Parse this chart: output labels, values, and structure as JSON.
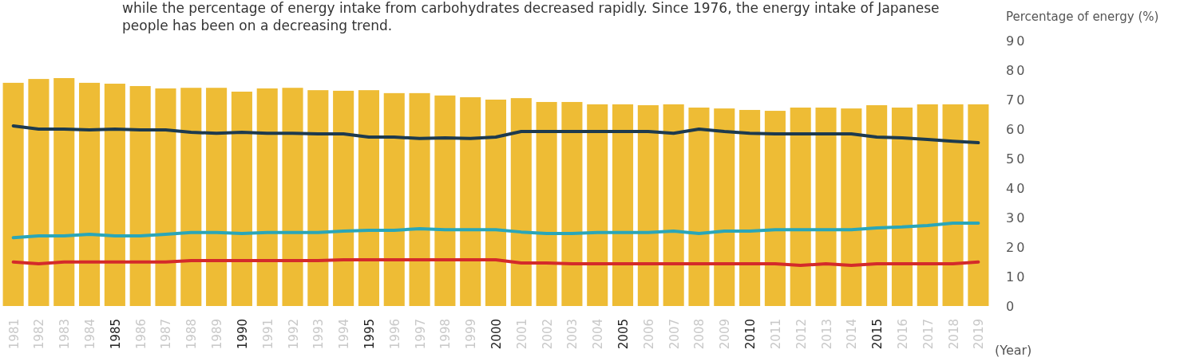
{
  "chart_data": {
    "type": "bar",
    "title": "while the percentage of energy intake from carbohydrates decreased rapidly. Since 1976, the energy intake of Japanese people has been on a decreasing trend.",
    "ylabel": "Percentage of energy (%)",
    "xlabel": "(Year)",
    "categories": [
      "1981",
      "1982",
      "1983",
      "1984",
      "1985",
      "1986",
      "1987",
      "1988",
      "1989",
      "1990",
      "1991",
      "1992",
      "1993",
      "1994",
      "1995",
      "1996",
      "1997",
      "1998",
      "1999",
      "2000",
      "2001",
      "2002",
      "2003",
      "2004",
      "2005",
      "2006",
      "2007",
      "2008",
      "2009",
      "2010",
      "2011",
      "2012",
      "2013",
      "2014",
      "2015",
      "2016",
      "2017",
      "2018",
      "2019"
    ],
    "series": [
      {
        "color": "#eebc35",
        "values": [
          75.7,
          77,
          77.3,
          75.7,
          75.4,
          74.6,
          73.8,
          74,
          74,
          72.7,
          73.8,
          74,
          73.2,
          73,
          73.2,
          72.2,
          72.2,
          71.4,
          70.8,
          70,
          70.5,
          69.2,
          69.2,
          68.4,
          68.4,
          68.1,
          68.4,
          67.3,
          67,
          66.5,
          66.2,
          67.3,
          67.3,
          67,
          68.1,
          67.3,
          68.4,
          68.4,
          68.4
        ]
      },
      {
        "type": "line",
        "color": "#1d3a4e",
        "values": [
          61.1,
          60,
          60,
          59.7,
          60,
          59.7,
          59.7,
          58.9,
          58.6,
          58.9,
          58.6,
          58.6,
          58.4,
          58.4,
          57.3,
          57.3,
          56.8,
          57,
          56.8,
          57.3,
          59.2,
          59.2,
          59.2,
          59.2,
          59.2,
          59.2,
          58.6,
          60,
          59.2,
          58.6,
          58.4,
          58.4,
          58.4,
          58.4,
          57.3,
          57,
          56.5,
          55.9,
          55.4
        ]
      },
      {
        "type": "line",
        "color": "#2aa6b8",
        "values": [
          23.2,
          23.8,
          23.8,
          24.3,
          23.8,
          23.8,
          24.3,
          24.9,
          24.9,
          24.6,
          24.9,
          24.9,
          24.9,
          25.4,
          25.7,
          25.7,
          26.2,
          25.9,
          25.9,
          25.9,
          25.1,
          24.6,
          24.6,
          24.9,
          24.9,
          24.9,
          25.4,
          24.6,
          25.4,
          25.4,
          25.9,
          25.9,
          25.9,
          25.9,
          26.5,
          26.8,
          27.3,
          28.1,
          28.1
        ]
      },
      {
        "type": "line",
        "color": "#d42a2a",
        "values": [
          14.9,
          14.3,
          14.9,
          14.9,
          14.9,
          14.9,
          14.9,
          15.4,
          15.4,
          15.4,
          15.4,
          15.4,
          15.4,
          15.7,
          15.7,
          15.7,
          15.7,
          15.7,
          15.7,
          15.7,
          14.6,
          14.6,
          14.3,
          14.3,
          14.3,
          14.3,
          14.3,
          14.3,
          14.3,
          14.3,
          14.3,
          13.8,
          14.3,
          13.8,
          14.3,
          14.3,
          14.3,
          14.3,
          14.9
        ]
      }
    ],
    "ylim": [
      0,
      90
    ],
    "yticks": [
      0,
      10,
      20,
      30,
      40,
      50,
      60,
      70,
      80,
      90
    ],
    "grid": false
  }
}
